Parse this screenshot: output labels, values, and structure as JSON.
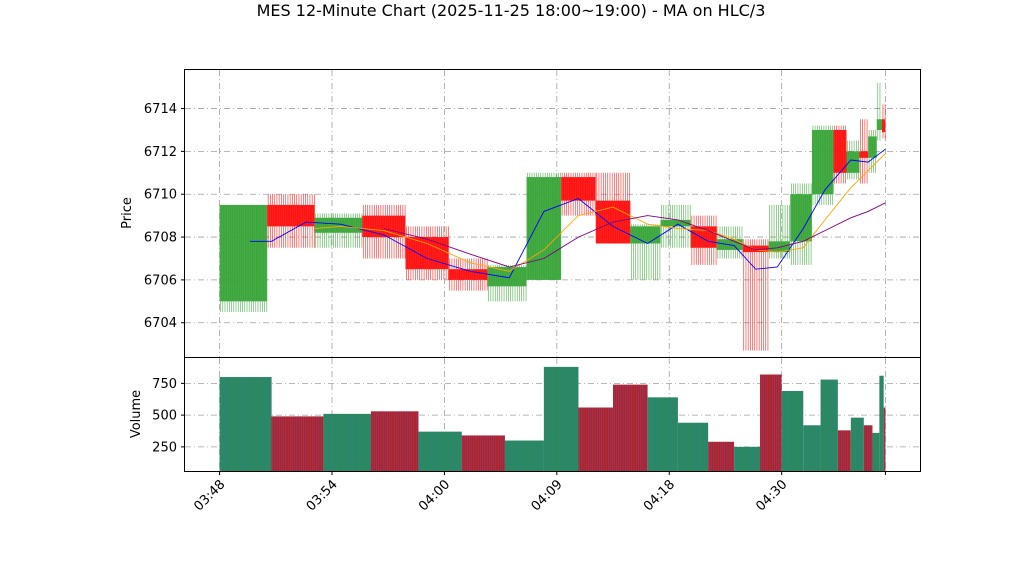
{
  "chart_data": {
    "type": "candlestick",
    "title": "MES 12-Minute Chart (2025-11-25 18:00~19:00) - MA on HLC/3",
    "price_panel": {
      "ylabel": "Price",
      "ylim": [
        6702.4,
        6715.8
      ],
      "yticks": [
        6704,
        6706,
        6708,
        6710,
        6712,
        6714
      ],
      "grid": true,
      "candles": [
        {
          "start": 0.0,
          "end": 5.5,
          "open": 6705.0,
          "high": 6709.5,
          "low": 6704.5,
          "close": 6709.5
        },
        {
          "start": 5.5,
          "end": 11.0,
          "open": 6709.5,
          "high": 6710.0,
          "low": 6707.5,
          "close": 6708.5
        },
        {
          "start": 11.0,
          "end": 16.5,
          "open": 6708.2,
          "high": 6709.1,
          "low": 6707.5,
          "close": 6708.9
        },
        {
          "start": 16.5,
          "end": 21.5,
          "open": 6709.0,
          "high": 6709.5,
          "low": 6707.0,
          "close": 6708.0
        },
        {
          "start": 21.5,
          "end": 26.5,
          "open": 6708.0,
          "high": 6708.5,
          "low": 6706.0,
          "close": 6706.5
        },
        {
          "start": 26.5,
          "end": 31.0,
          "open": 6706.5,
          "high": 6707.0,
          "low": 6705.5,
          "close": 6706.0
        },
        {
          "start": 31.0,
          "end": 35.5,
          "open": 6705.7,
          "high": 6706.7,
          "low": 6705.0,
          "close": 6706.6
        },
        {
          "start": 35.5,
          "end": 39.5,
          "open": 6706.0,
          "high": 6711.0,
          "low": 6706.0,
          "close": 6710.8
        },
        {
          "start": 39.5,
          "end": 43.5,
          "open": 6710.8,
          "high": 6711.0,
          "low": 6709.0,
          "close": 6709.7
        },
        {
          "start": 43.5,
          "end": 47.5,
          "open": 6709.7,
          "high": 6711.0,
          "low": 6707.7,
          "close": 6707.7
        },
        {
          "start": 47.5,
          "end": 51.0,
          "open": 6707.7,
          "high": 6708.6,
          "low": 6706.0,
          "close": 6708.5
        },
        {
          "start": 51.0,
          "end": 54.5,
          "open": 6708.5,
          "high": 6709.5,
          "low": 6707.5,
          "close": 6708.8
        },
        {
          "start": 54.5,
          "end": 57.5,
          "open": 6708.5,
          "high": 6709.0,
          "low": 6706.7,
          "close": 6707.5
        },
        {
          "start": 57.5,
          "end": 60.5,
          "open": 6707.4,
          "high": 6708.5,
          "low": 6707.0,
          "close": 6707.9
        },
        {
          "start": 60.5,
          "end": 63.5,
          "open": 6707.6,
          "high": 6707.9,
          "low": 6702.7,
          "close": 6707.3
        },
        {
          "start": 63.5,
          "end": 66.0,
          "open": 6707.3,
          "high": 6709.5,
          "low": 6707.0,
          "close": 6707.8
        },
        {
          "start": 66.0,
          "end": 68.5,
          "open": 6707.8,
          "high": 6710.5,
          "low": 6706.7,
          "close": 6710.0
        },
        {
          "start": 68.5,
          "end": 71.0,
          "open": 6710.0,
          "high": 6713.2,
          "low": 6709.5,
          "close": 6713.0
        },
        {
          "start": 71.0,
          "end": 72.5,
          "open": 6713.0,
          "high": 6713.2,
          "low": 6710.5,
          "close": 6711.0
        },
        {
          "start": 72.5,
          "end": 74.0,
          "open": 6711.0,
          "high": 6712.5,
          "low": 6710.7,
          "close": 6712.0
        },
        {
          "start": 74.0,
          "end": 75.0,
          "open": 6712.0,
          "high": 6713.5,
          "low": 6710.5,
          "close": 6711.7
        },
        {
          "start": 75.0,
          "end": 76.0,
          "open": 6711.7,
          "high": 6713.0,
          "low": 6711.0,
          "close": 6712.7
        },
        {
          "start": 76.0,
          "end": 76.6,
          "open": 6713.0,
          "high": 6715.2,
          "low": 6712.5,
          "close": 6713.5
        },
        {
          "start": 76.6,
          "end": 77.0,
          "open": 6713.5,
          "high": 6714.2,
          "low": 6712.6,
          "close": 6712.9
        }
      ],
      "ma_series": [
        {
          "color": "#0000ff",
          "x": [
            3.5,
            6.0,
            10.0,
            14.0,
            19.0,
            24.0,
            29.0,
            33.5,
            37.5,
            41.5,
            45.5,
            49.5,
            53.0,
            56.5,
            59.5,
            62.0,
            64.5,
            67.5,
            70.0,
            73.0,
            75.0,
            77.0
          ],
          "y": [
            6707.8,
            6707.8,
            6708.7,
            6708.6,
            6708.1,
            6707.0,
            6706.4,
            6706.1,
            6709.2,
            6709.8,
            6708.5,
            6707.7,
            6708.6,
            6707.8,
            6707.6,
            6706.5,
            6706.6,
            6708.4,
            6710.2,
            6711.6,
            6711.5,
            6712.1
          ]
        },
        {
          "color": "#ffa500",
          "x": [
            11.0,
            14.0,
            19.0,
            24.0,
            29.0,
            33.5,
            37.5,
            41.5,
            45.5,
            49.5,
            53.0,
            56.5,
            59.5,
            62.0,
            64.5,
            67.5,
            70.0,
            73.0,
            75.0,
            77.0
          ],
          "y": [
            6708.4,
            6708.5,
            6708.3,
            6707.7,
            6706.8,
            6706.4,
            6707.4,
            6709.0,
            6709.4,
            6708.6,
            6708.4,
            6708.3,
            6707.9,
            6707.4,
            6707.3,
            6707.5,
            6708.8,
            6710.3,
            6711.1,
            6711.9
          ]
        },
        {
          "color": "#800080",
          "x": [
            19.0,
            24.0,
            29.0,
            33.5,
            37.5,
            41.5,
            45.5,
            49.5,
            53.0,
            56.5,
            59.5,
            62.0,
            64.5,
            67.5,
            70.0,
            73.0,
            75.0,
            77.0
          ],
          "y": [
            6708.4,
            6707.9,
            6707.2,
            6706.6,
            6707.0,
            6708.0,
            6708.7,
            6709.0,
            6708.8,
            6708.3,
            6707.8,
            6707.4,
            6707.5,
            6707.8,
            6708.3,
            6708.9,
            6709.2,
            6709.6
          ]
        }
      ]
    },
    "volume_panel": {
      "ylabel": "Volume",
      "ylim": [
        60,
        950
      ],
      "yticks": [
        250,
        500,
        750
      ],
      "grid": true,
      "bars": [
        {
          "start": 0.0,
          "end": 6.0,
          "volume": 800,
          "up": true
        },
        {
          "start": 6.0,
          "end": 12.0,
          "volume": 490,
          "up": false
        },
        {
          "start": 12.0,
          "end": 17.5,
          "volume": 510,
          "up": true
        },
        {
          "start": 17.5,
          "end": 23.0,
          "volume": 530,
          "up": false
        },
        {
          "start": 23.0,
          "end": 28.0,
          "volume": 370,
          "up": true
        },
        {
          "start": 28.0,
          "end": 33.0,
          "volume": 340,
          "up": false
        },
        {
          "start": 33.0,
          "end": 37.5,
          "volume": 300,
          "up": true
        },
        {
          "start": 37.5,
          "end": 41.5,
          "volume": 880,
          "up": true
        },
        {
          "start": 41.5,
          "end": 45.5,
          "volume": 560,
          "up": false
        },
        {
          "start": 45.5,
          "end": 49.5,
          "volume": 740,
          "up": false
        },
        {
          "start": 49.5,
          "end": 53.0,
          "volume": 640,
          "up": true
        },
        {
          "start": 53.0,
          "end": 56.5,
          "volume": 440,
          "up": true
        },
        {
          "start": 56.5,
          "end": 59.5,
          "volume": 290,
          "up": false
        },
        {
          "start": 59.5,
          "end": 62.5,
          "volume": 250,
          "up": true
        },
        {
          "start": 62.5,
          "end": 65.0,
          "volume": 820,
          "up": false
        },
        {
          "start": 65.0,
          "end": 67.5,
          "volume": 690,
          "up": true
        },
        {
          "start": 67.5,
          "end": 69.5,
          "volume": 420,
          "up": true
        },
        {
          "start": 69.5,
          "end": 71.5,
          "volume": 780,
          "up": true
        },
        {
          "start": 71.5,
          "end": 73.0,
          "volume": 380,
          "up": false
        },
        {
          "start": 73.0,
          "end": 74.5,
          "volume": 480,
          "up": true
        },
        {
          "start": 74.5,
          "end": 75.5,
          "volume": 420,
          "up": false
        },
        {
          "start": 75.5,
          "end": 76.3,
          "volume": 360,
          "up": true
        },
        {
          "start": 76.3,
          "end": 76.8,
          "volume": 810,
          "up": true
        },
        {
          "start": 76.8,
          "end": 77.0,
          "volume": 560,
          "up": false
        }
      ]
    },
    "x_axis": {
      "range": [
        -4.0,
        81.0
      ],
      "ticks": [
        {
          "x": 0,
          "label": "03:48"
        },
        {
          "x": 13,
          "label": "03:54"
        },
        {
          "x": 26,
          "label": "04:00"
        },
        {
          "x": 39,
          "label": "04:09"
        },
        {
          "x": 52,
          "label": "04:18"
        },
        {
          "x": 65,
          "label": "04:30"
        },
        {
          "x": 77,
          "label": ""
        }
      ]
    },
    "colors": {
      "up": "#2ca02c",
      "down": "#ff0000",
      "volume_up": "#2e8b57",
      "volume_down": "#b22222",
      "grid": "#a0a0a0"
    }
  }
}
